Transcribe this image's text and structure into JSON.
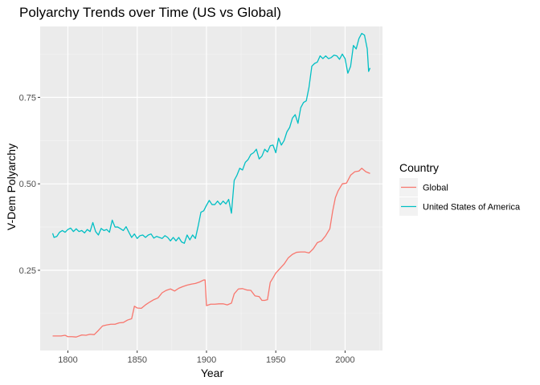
{
  "chart_data": {
    "type": "line",
    "title": "Polyarchy Trends over Time (US vs Global)",
    "xlabel": "Year",
    "ylabel": "V-Dem Polyarchy",
    "xlim": [
      1780,
      2027
    ],
    "ylim": [
      0.018,
      0.955
    ],
    "x_ticks": [
      1800,
      1850,
      1900,
      1950,
      2000
    ],
    "x_tick_labels": [
      "1800",
      "1850",
      "1900",
      "1950",
      "2000"
    ],
    "y_ticks": [
      0.25,
      0.5,
      0.75
    ],
    "y_tick_labels": [
      "0.25",
      "0.50",
      "0.75"
    ],
    "grid": true,
    "legend": {
      "title": "Country",
      "position": "right"
    },
    "series": [
      {
        "name": "Global",
        "color": "#F8766D",
        "points": [
          [
            1789,
            0.06
          ],
          [
            1795,
            0.06
          ],
          [
            1798,
            0.062
          ],
          [
            1800,
            0.058
          ],
          [
            1803,
            0.058
          ],
          [
            1806,
            0.057
          ],
          [
            1810,
            0.063
          ],
          [
            1813,
            0.062
          ],
          [
            1816,
            0.065
          ],
          [
            1819,
            0.064
          ],
          [
            1822,
            0.076
          ],
          [
            1825,
            0.089
          ],
          [
            1828,
            0.092
          ],
          [
            1831,
            0.094
          ],
          [
            1834,
            0.094
          ],
          [
            1837,
            0.098
          ],
          [
            1840,
            0.099
          ],
          [
            1843,
            0.106
          ],
          [
            1846,
            0.11
          ],
          [
            1848,
            0.146
          ],
          [
            1850,
            0.141
          ],
          [
            1853,
            0.14
          ],
          [
            1856,
            0.15
          ],
          [
            1859,
            0.158
          ],
          [
            1862,
            0.165
          ],
          [
            1865,
            0.17
          ],
          [
            1868,
            0.185
          ],
          [
            1871,
            0.192
          ],
          [
            1874,
            0.196
          ],
          [
            1877,
            0.19
          ],
          [
            1880,
            0.198
          ],
          [
            1883,
            0.203
          ],
          [
            1886,
            0.207
          ],
          [
            1889,
            0.21
          ],
          [
            1892,
            0.212
          ],
          [
            1895,
            0.216
          ],
          [
            1898,
            0.222
          ],
          [
            1899,
            0.222
          ],
          [
            1900,
            0.148
          ],
          [
            1903,
            0.152
          ],
          [
            1906,
            0.152
          ],
          [
            1909,
            0.153
          ],
          [
            1912,
            0.153
          ],
          [
            1915,
            0.15
          ],
          [
            1918,
            0.155
          ],
          [
            1920,
            0.182
          ],
          [
            1923,
            0.196
          ],
          [
            1926,
            0.197
          ],
          [
            1929,
            0.193
          ],
          [
            1932,
            0.192
          ],
          [
            1935,
            0.176
          ],
          [
            1938,
            0.174
          ],
          [
            1940,
            0.163
          ],
          [
            1942,
            0.163
          ],
          [
            1944,
            0.165
          ],
          [
            1946,
            0.215
          ],
          [
            1948,
            0.228
          ],
          [
            1950,
            0.242
          ],
          [
            1953,
            0.255
          ],
          [
            1956,
            0.268
          ],
          [
            1959,
            0.286
          ],
          [
            1962,
            0.296
          ],
          [
            1965,
            0.302
          ],
          [
            1968,
            0.303
          ],
          [
            1971,
            0.303
          ],
          [
            1974,
            0.3
          ],
          [
            1977,
            0.312
          ],
          [
            1980,
            0.33
          ],
          [
            1983,
            0.335
          ],
          [
            1986,
            0.35
          ],
          [
            1989,
            0.37
          ],
          [
            1991,
            0.42
          ],
          [
            1993,
            0.46
          ],
          [
            1995,
            0.48
          ],
          [
            1998,
            0.5
          ],
          [
            2001,
            0.502
          ],
          [
            2004,
            0.525
          ],
          [
            2007,
            0.535
          ],
          [
            2010,
            0.537
          ],
          [
            2012,
            0.545
          ],
          [
            2015,
            0.535
          ],
          [
            2018,
            0.53
          ]
        ]
      },
      {
        "name": "United States of America",
        "color": "#00BFC4",
        "points": [
          [
            1789,
            0.357
          ],
          [
            1790,
            0.345
          ],
          [
            1792,
            0.348
          ],
          [
            1794,
            0.36
          ],
          [
            1796,
            0.365
          ],
          [
            1798,
            0.36
          ],
          [
            1800,
            0.368
          ],
          [
            1802,
            0.372
          ],
          [
            1804,
            0.362
          ],
          [
            1806,
            0.37
          ],
          [
            1808,
            0.362
          ],
          [
            1810,
            0.365
          ],
          [
            1812,
            0.358
          ],
          [
            1814,
            0.368
          ],
          [
            1816,
            0.362
          ],
          [
            1818,
            0.388
          ],
          [
            1820,
            0.362
          ],
          [
            1822,
            0.352
          ],
          [
            1824,
            0.371
          ],
          [
            1826,
            0.365
          ],
          [
            1828,
            0.368
          ],
          [
            1830,
            0.36
          ],
          [
            1832,
            0.395
          ],
          [
            1834,
            0.375
          ],
          [
            1836,
            0.375
          ],
          [
            1838,
            0.37
          ],
          [
            1840,
            0.365
          ],
          [
            1842,
            0.376
          ],
          [
            1844,
            0.36
          ],
          [
            1846,
            0.345
          ],
          [
            1848,
            0.355
          ],
          [
            1850,
            0.342
          ],
          [
            1852,
            0.35
          ],
          [
            1854,
            0.352
          ],
          [
            1856,
            0.345
          ],
          [
            1858,
            0.352
          ],
          [
            1860,
            0.355
          ],
          [
            1862,
            0.343
          ],
          [
            1864,
            0.348
          ],
          [
            1866,
            0.345
          ],
          [
            1868,
            0.342
          ],
          [
            1870,
            0.35
          ],
          [
            1872,
            0.345
          ],
          [
            1874,
            0.335
          ],
          [
            1876,
            0.345
          ],
          [
            1878,
            0.335
          ],
          [
            1880,
            0.345
          ],
          [
            1882,
            0.332
          ],
          [
            1884,
            0.328
          ],
          [
            1886,
            0.352
          ],
          [
            1888,
            0.338
          ],
          [
            1890,
            0.352
          ],
          [
            1892,
            0.342
          ],
          [
            1894,
            0.378
          ],
          [
            1896,
            0.418
          ],
          [
            1898,
            0.422
          ],
          [
            1900,
            0.438
          ],
          [
            1902,
            0.452
          ],
          [
            1904,
            0.44
          ],
          [
            1906,
            0.44
          ],
          [
            1908,
            0.45
          ],
          [
            1910,
            0.44
          ],
          [
            1912,
            0.45
          ],
          [
            1914,
            0.442
          ],
          [
            1916,
            0.455
          ],
          [
            1918,
            0.415
          ],
          [
            1920,
            0.51
          ],
          [
            1922,
            0.525
          ],
          [
            1924,
            0.545
          ],
          [
            1926,
            0.54
          ],
          [
            1928,
            0.562
          ],
          [
            1930,
            0.57
          ],
          [
            1932,
            0.585
          ],
          [
            1934,
            0.59
          ],
          [
            1936,
            0.6
          ],
          [
            1938,
            0.572
          ],
          [
            1940,
            0.58
          ],
          [
            1942,
            0.6
          ],
          [
            1944,
            0.592
          ],
          [
            1946,
            0.61
          ],
          [
            1948,
            0.612
          ],
          [
            1950,
            0.59
          ],
          [
            1952,
            0.632
          ],
          [
            1954,
            0.612
          ],
          [
            1956,
            0.625
          ],
          [
            1958,
            0.65
          ],
          [
            1960,
            0.663
          ],
          [
            1962,
            0.69
          ],
          [
            1964,
            0.7
          ],
          [
            1966,
            0.675
          ],
          [
            1968,
            0.72
          ],
          [
            1970,
            0.735
          ],
          [
            1972,
            0.74
          ],
          [
            1974,
            0.78
          ],
          [
            1976,
            0.84
          ],
          [
            1978,
            0.848
          ],
          [
            1980,
            0.852
          ],
          [
            1982,
            0.87
          ],
          [
            1984,
            0.862
          ],
          [
            1986,
            0.87
          ],
          [
            1988,
            0.862
          ],
          [
            1990,
            0.865
          ],
          [
            1992,
            0.872
          ],
          [
            1994,
            0.87
          ],
          [
            1996,
            0.86
          ],
          [
            1998,
            0.875
          ],
          [
            2000,
            0.862
          ],
          [
            2002,
            0.82
          ],
          [
            2004,
            0.84
          ],
          [
            2006,
            0.9
          ],
          [
            2008,
            0.89
          ],
          [
            2010,
            0.92
          ],
          [
            2012,
            0.935
          ],
          [
            2014,
            0.93
          ],
          [
            2016,
            0.89
          ],
          [
            2017,
            0.825
          ],
          [
            2018,
            0.835
          ]
        ]
      }
    ]
  }
}
